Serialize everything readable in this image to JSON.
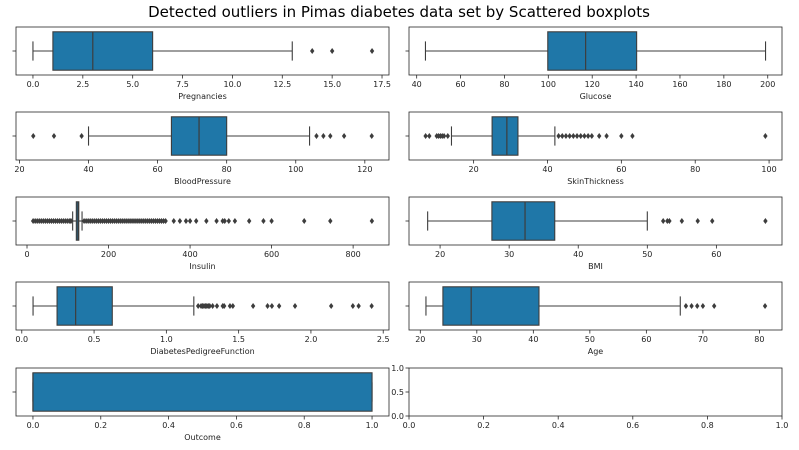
{
  "chart_data": {
    "type": "boxplot",
    "title": "Detected outliers in Pimas diabetes data set by Scattered boxplots",
    "box_color": "#1f77a8",
    "panels": [
      {
        "xlabel": "Pregnancies",
        "xlim": [
          -0.85,
          17.85
        ],
        "ticks": [
          0,
          2.5,
          5,
          7.5,
          10,
          12.5,
          15,
          17.5
        ],
        "tick_labels": [
          "0.0",
          "2.5",
          "5.0",
          "7.5",
          "10.0",
          "12.5",
          "15.0",
          "17.5"
        ],
        "box": {
          "whisker_low": 0,
          "q1": 1,
          "median": 3,
          "q3": 6,
          "whisker_high": 13
        },
        "outliers": [
          14,
          15,
          17
        ]
      },
      {
        "xlabel": "Glucose",
        "xlim": [
          36.5,
          206.5
        ],
        "ticks": [
          40,
          60,
          80,
          100,
          120,
          140,
          160,
          180,
          200
        ],
        "tick_labels": [
          "40",
          "60",
          "80",
          "100",
          "120",
          "140",
          "160",
          "180",
          "200"
        ],
        "box": {
          "whisker_low": 44,
          "q1": 99.75,
          "median": 117,
          "q3": 140.25,
          "whisker_high": 199
        },
        "outliers": []
      },
      {
        "xlabel": "BloodPressure",
        "xlim": [
          19,
          127
        ],
        "ticks": [
          20,
          40,
          60,
          80,
          100,
          120
        ],
        "tick_labels": [
          "20",
          "40",
          "60",
          "80",
          "100",
          "120"
        ],
        "box": {
          "whisker_low": 40,
          "q1": 64,
          "median": 72,
          "q3": 80,
          "whisker_high": 104
        },
        "outliers": [
          24,
          30,
          38,
          106,
          108,
          110,
          114,
          122
        ]
      },
      {
        "xlabel": "SkinThickness",
        "xlim": [
          2.5,
          103.5
        ],
        "ticks": [
          20,
          40,
          60,
          80,
          100
        ],
        "tick_labels": [
          "20",
          "40",
          "60",
          "80",
          "100"
        ],
        "box": {
          "whisker_low": 14,
          "q1": 25,
          "median": 29,
          "q3": 32,
          "whisker_high": 42
        },
        "outliers": [
          7,
          8,
          10,
          10.5,
          11,
          11.5,
          12,
          13,
          43,
          44,
          45,
          46,
          47,
          48,
          49,
          50,
          51,
          52,
          54,
          56,
          60,
          63,
          99
        ]
      },
      {
        "xlabel": "Insulin",
        "xlim": [
          -27,
          888
        ],
        "ticks": [
          0,
          200,
          400,
          600,
          800
        ],
        "tick_labels": [
          "0",
          "200",
          "400",
          "600",
          "800"
        ],
        "box": {
          "whisker_low": 112,
          "q1": 121,
          "median": 125,
          "q3": 127,
          "whisker_high": 135
        },
        "outliers": [
          15,
          20,
          25,
          30,
          35,
          40,
          45,
          50,
          55,
          60,
          65,
          70,
          75,
          80,
          85,
          90,
          95,
          100,
          105,
          108,
          140,
          145,
          150,
          155,
          160,
          165,
          170,
          175,
          180,
          185,
          190,
          195,
          200,
          205,
          210,
          215,
          220,
          225,
          230,
          235,
          240,
          245,
          250,
          255,
          260,
          265,
          270,
          275,
          280,
          285,
          290,
          295,
          300,
          305,
          310,
          315,
          320,
          325,
          330,
          335,
          340,
          360,
          375,
          390,
          400,
          415,
          440,
          465,
          480,
          485,
          495,
          510,
          545,
          580,
          600,
          680,
          744,
          846
        ]
      },
      {
        "xlabel": "BMI",
        "xlim": [
          15.5,
          69.5
        ],
        "ticks": [
          20,
          30,
          40,
          50,
          60
        ],
        "tick_labels": [
          "20",
          "30",
          "40",
          "50",
          "60"
        ],
        "box": {
          "whisker_low": 18.2,
          "q1": 27.5,
          "median": 32.3,
          "q3": 36.6,
          "whisker_high": 50
        },
        "outliers": [
          52.3,
          52.9,
          53.2,
          55,
          57.3,
          59.4,
          67.1
        ]
      },
      {
        "xlabel": "DiabetesPedigreeFunction",
        "xlim": [
          -0.04,
          2.54
        ],
        "ticks": [
          0,
          0.5,
          1,
          1.5,
          2,
          2.5
        ],
        "tick_labels": [
          "0.0",
          "0.5",
          "1.0",
          "1.5",
          "2.0",
          "2.5"
        ],
        "box": {
          "whisker_low": 0.078,
          "q1": 0.244,
          "median": 0.3725,
          "q3": 0.626,
          "whisker_high": 1.19
        },
        "outliers": [
          1.22,
          1.24,
          1.25,
          1.26,
          1.27,
          1.28,
          1.29,
          1.3,
          1.32,
          1.35,
          1.39,
          1.4,
          1.44,
          1.46,
          1.6,
          1.7,
          1.73,
          1.78,
          1.89,
          2.14,
          2.29,
          2.33,
          2.42
        ]
      },
      {
        "xlabel": "Age",
        "xlim": [
          18,
          84
        ],
        "ticks": [
          20,
          30,
          40,
          50,
          60,
          70,
          80
        ],
        "tick_labels": [
          "20",
          "30",
          "40",
          "50",
          "60",
          "70",
          "80"
        ],
        "box": {
          "whisker_low": 21,
          "q1": 24,
          "median": 29,
          "q3": 41,
          "whisker_high": 66
        },
        "outliers": [
          67,
          68,
          69,
          70,
          72,
          81
        ]
      },
      {
        "xlabel": "Outcome",
        "xlim": [
          -0.05,
          1.05
        ],
        "ticks": [
          0,
          0.2,
          0.4,
          0.6,
          0.8,
          1
        ],
        "tick_labels": [
          "0.0",
          "0.2",
          "0.4",
          "0.6",
          "0.8",
          "1.0"
        ],
        "box": {
          "whisker_low": 0,
          "q1": 0,
          "median": 0,
          "q3": 1,
          "whisker_high": 1
        },
        "outliers": []
      },
      {
        "xlabel": "",
        "xlim": [
          0,
          1
        ],
        "ylim": [
          0,
          1
        ],
        "ticks": [
          0,
          0.2,
          0.4,
          0.6,
          0.8,
          1
        ],
        "tick_labels": [
          "0.0",
          "0.2",
          "0.4",
          "0.6",
          "0.8",
          "1.0"
        ],
        "yticks": [
          0,
          0.5,
          1
        ],
        "ytick_labels": [
          "0.0",
          "0.5",
          "1.0"
        ],
        "empty": true
      }
    ]
  }
}
